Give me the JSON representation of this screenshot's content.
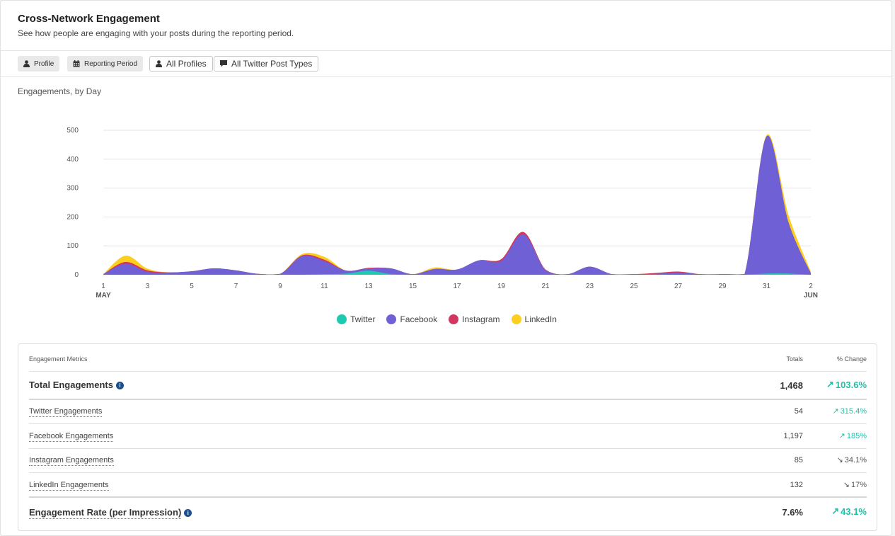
{
  "header": {
    "title": "Cross-Network Engagement",
    "subtitle": "See how people are engaging with your posts during the reporting period."
  },
  "filters": [
    {
      "label": "Profile",
      "icon": "person-icon"
    },
    {
      "label": "Reporting Period",
      "icon": "calendar-icon"
    },
    {
      "label": "All Profiles",
      "icon": "person-icon"
    },
    {
      "label": "All Twitter Post Types",
      "icon": "speech-bubble-icon"
    }
  ],
  "chart_label": "Engagements, by Day",
  "colors": {
    "twitter": "#1ec9b2",
    "facebook": "#7060d6",
    "instagram": "#d3365f",
    "linkedin": "#fccf1e",
    "up": "#22bfa8"
  },
  "chart_data": {
    "type": "area",
    "stacked": true,
    "x": [
      "May 1",
      "May 2",
      "May 3",
      "May 4",
      "May 5",
      "May 6",
      "May 7",
      "May 8",
      "May 9",
      "May 10",
      "May 11",
      "May 12",
      "May 13",
      "May 14",
      "May 15",
      "May 16",
      "May 17",
      "May 18",
      "May 19",
      "May 20",
      "May 21",
      "May 22",
      "May 23",
      "May 24",
      "May 25",
      "May 26",
      "May 27",
      "May 28",
      "May 29",
      "May 30",
      "May 31",
      "Jun 1",
      "Jun 2"
    ],
    "series": [
      {
        "name": "Twitter",
        "values": [
          0,
          0,
          0,
          0,
          0,
          0,
          0,
          0,
          0,
          0,
          2,
          4,
          14,
          2,
          0,
          0,
          0,
          0,
          0,
          0,
          0,
          0,
          0,
          0,
          0,
          0,
          0,
          0,
          0,
          0,
          4,
          4,
          0
        ]
      },
      {
        "name": "Facebook",
        "values": [
          2,
          38,
          10,
          8,
          12,
          22,
          15,
          3,
          3,
          65,
          45,
          10,
          8,
          20,
          2,
          20,
          18,
          50,
          48,
          140,
          16,
          2,
          28,
          2,
          2,
          3,
          8,
          2,
          2,
          2,
          475,
          175,
          5
        ]
      },
      {
        "name": "Instagram",
        "values": [
          0,
          6,
          5,
          0,
          0,
          0,
          0,
          0,
          0,
          2,
          5,
          0,
          2,
          0,
          0,
          0,
          0,
          0,
          6,
          8,
          2,
          0,
          0,
          0,
          0,
          3,
          3,
          0,
          0,
          0,
          0,
          0,
          0
        ]
      },
      {
        "name": "LinkedIn",
        "values": [
          0,
          22,
          6,
          0,
          0,
          0,
          0,
          0,
          0,
          5,
          10,
          0,
          0,
          0,
          0,
          5,
          0,
          0,
          0,
          0,
          0,
          0,
          0,
          0,
          0,
          0,
          0,
          0,
          0,
          0,
          4,
          25,
          6
        ]
      }
    ],
    "ylim": [
      0,
      500
    ],
    "yticks": [
      "0",
      "100",
      "200",
      "300",
      "400",
      "500"
    ],
    "xtick_labels": [
      "1",
      "3",
      "5",
      "7",
      "9",
      "11",
      "13",
      "15",
      "17",
      "19",
      "21",
      "23",
      "25",
      "27",
      "29",
      "31",
      "2"
    ],
    "xtick_sublabels": {
      "first": "MAY",
      "last": "JUN"
    },
    "grid": true,
    "legend_placement": "bottom"
  },
  "metrics": {
    "header": {
      "name": "Engagement Metrics",
      "totals": "Totals",
      "change": "% Change"
    },
    "rows": [
      {
        "name": "Total Engagements",
        "total": "1,468",
        "change": "103.6%",
        "direction": "up"
      },
      {
        "name": "Twitter Engagements",
        "total": "54",
        "change": "315.4%",
        "direction": "up"
      },
      {
        "name": "Facebook Engagements",
        "total": "1,197",
        "change": "185%",
        "direction": "up"
      },
      {
        "name": "Instagram Engagements",
        "total": "85",
        "change": "34.1%",
        "direction": "down"
      },
      {
        "name": "LinkedIn Engagements",
        "total": "132",
        "change": "17%",
        "direction": "down"
      },
      {
        "name": "Engagement Rate (per Impression)",
        "total": "7.6%",
        "change": "43.1%",
        "direction": "up"
      }
    ]
  }
}
